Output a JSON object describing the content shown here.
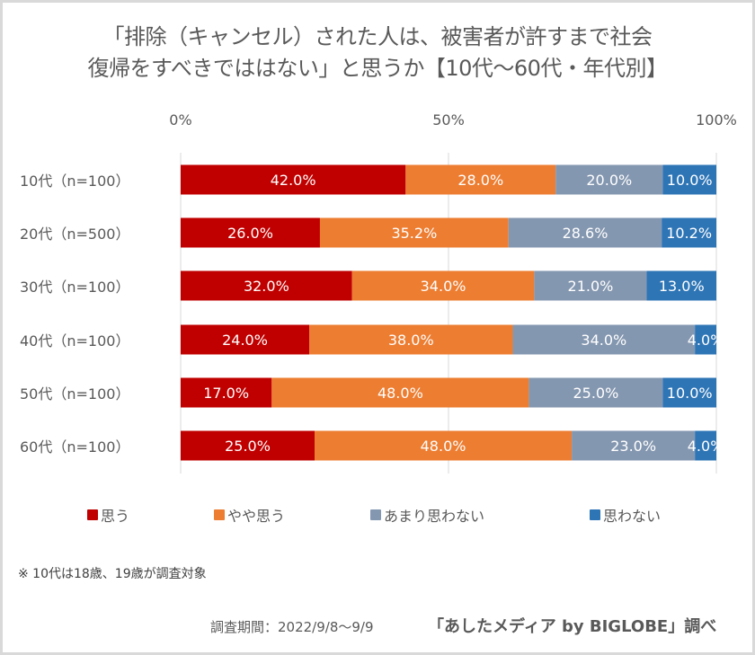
{
  "chart_data": {
    "type": "bar",
    "orientation": "horizontal",
    "stacked": true,
    "title": "「排除（キャンセル）された人は、被害者が許すまで社会復帰をすべきでははない」と思うか【10代〜60代・年代別】",
    "title_lines": [
      "「排除（キャンセル）された人は、被害者が許すまで社会",
      "復帰をすべきでははない」と思うか【10代〜60代・年代別】"
    ],
    "xlabel": "",
    "ylabel": "",
    "xlim": [
      0,
      100
    ],
    "x_ticks": [
      "0%",
      "50%",
      "100%"
    ],
    "x_tick_values": [
      0,
      50,
      100
    ],
    "grid": true,
    "legend_position": "bottom",
    "categories": [
      "10代（n=100）",
      "20代（n=500）",
      "30代（n=100）",
      "40代（n=100）",
      "50代（n=100）",
      "60代（n=100）"
    ],
    "series": [
      {
        "name": "思う",
        "color": "#C00000",
        "values": [
          42.0,
          26.0,
          32.0,
          24.0,
          17.0,
          25.0
        ],
        "labels": [
          "42.0%",
          "26.0%",
          "32.0%",
          "24.0%",
          "17.0%",
          "25.0%"
        ]
      },
      {
        "name": "やや思う",
        "color": "#ED7D31",
        "values": [
          28.0,
          35.2,
          34.0,
          38.0,
          48.0,
          48.0
        ],
        "labels": [
          "28.0%",
          "35.2%",
          "34.0%",
          "38.0%",
          "48.0%",
          "48.0%"
        ]
      },
      {
        "name": "あまり思わない",
        "color": "#8497B0",
        "values": [
          20.0,
          28.6,
          21.0,
          34.0,
          25.0,
          23.0
        ],
        "labels": [
          "20.0%",
          "28.6%",
          "21.0%",
          "34.0%",
          "25.0%",
          "23.0%"
        ]
      },
      {
        "name": "思わない",
        "color": "#2E75B6",
        "values": [
          10.0,
          10.2,
          13.0,
          4.0,
          10.0,
          4.0
        ],
        "labels": [
          "10.0%",
          "10.2%",
          "13.0%",
          "4.0%",
          "10.0%",
          "4.0%"
        ]
      }
    ]
  },
  "footer": {
    "note": "※ 10代は18歳、19歳が調査対象",
    "period": "調査期間：2022/9/8〜9/9",
    "source": "「あしたメディア by BIGLOBE」調べ"
  }
}
